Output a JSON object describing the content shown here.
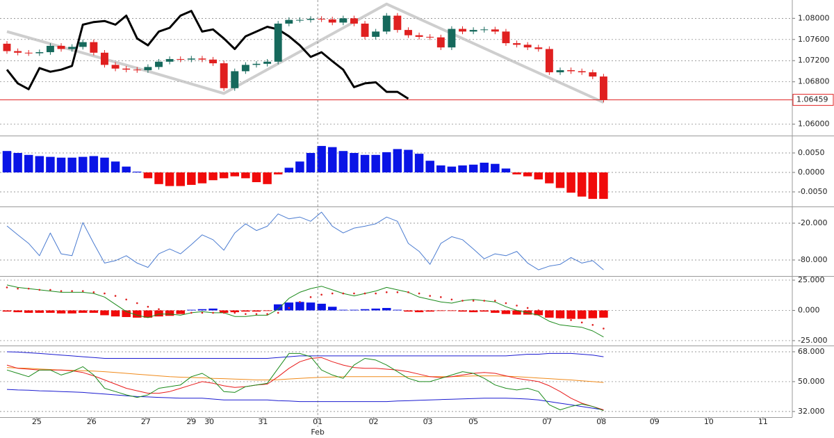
{
  "chart_data": [
    {
      "type": "candlestick",
      "xlim": [
        -0.64,
        72.4
      ],
      "ylim": [
        1.0581,
        1.0832
      ],
      "yticks": [
        {
          "value": 1.08,
          "label": "1.08000"
        },
        {
          "value": 1.076,
          "label": "1.07600"
        },
        {
          "value": 1.072,
          "label": "1.07200"
        },
        {
          "value": 1.068,
          "label": "1.06800"
        },
        {
          "value": 1.06,
          "label": "1.06000"
        }
      ],
      "grid": true,
      "up_color": "#16695c",
      "down_color": "#e02020",
      "open": [
        1.0752,
        1.0738,
        1.0735,
        1.0734,
        1.0736,
        1.0748,
        1.0742,
        1.0746,
        1.0755,
        1.0735,
        1.0712,
        1.0705,
        1.0703,
        1.0702,
        1.0708,
        1.0718,
        1.0723,
        1.0722,
        1.0724,
        1.0722,
        1.0715,
        1.0668,
        1.07,
        1.0712,
        1.0714,
        1.0718,
        1.079,
        1.0797,
        1.0797,
        1.0799,
        1.0798,
        1.0792,
        1.08,
        1.079,
        1.0765,
        1.0775,
        1.0805,
        1.0778,
        1.0768,
        1.0765,
        1.0764,
        1.0745,
        1.078,
        1.0775,
        1.0778,
        1.0779,
        1.0775,
        1.0753,
        1.075,
        1.0745,
        1.0742,
        1.0698,
        1.0702,
        1.07,
        1.0698,
        1.069
      ],
      "high": [
        1.0757,
        1.0743,
        1.074,
        1.0741,
        1.0753,
        1.0753,
        1.0751,
        1.076,
        1.076,
        1.074,
        1.0717,
        1.071,
        1.0708,
        1.0713,
        1.0723,
        1.0728,
        1.0728,
        1.0729,
        1.0729,
        1.0727,
        1.072,
        1.0705,
        1.0717,
        1.0719,
        1.0723,
        1.0795,
        1.0802,
        1.0802,
        1.0804,
        1.0804,
        1.0803,
        1.0805,
        1.0805,
        1.0795,
        1.078,
        1.081,
        1.081,
        1.0783,
        1.0773,
        1.077,
        1.0769,
        1.0785,
        1.0785,
        1.0783,
        1.0784,
        1.0784,
        1.078,
        1.0758,
        1.0755,
        1.075,
        1.0747,
        1.0707,
        1.0707,
        1.0705,
        1.0703,
        1.0695
      ],
      "low": [
        1.0733,
        1.073,
        1.0729,
        1.0729,
        1.0731,
        1.0737,
        1.0737,
        1.0741,
        1.073,
        1.0707,
        1.07,
        1.0698,
        1.0697,
        1.0697,
        1.0703,
        1.0713,
        1.0717,
        1.0717,
        1.0717,
        1.071,
        1.0663,
        1.0663,
        1.0695,
        1.0707,
        1.0709,
        1.0713,
        1.0785,
        1.0792,
        1.0792,
        1.0793,
        1.0787,
        1.0787,
        1.0785,
        1.076,
        1.076,
        1.077,
        1.0773,
        1.0763,
        1.076,
        1.0759,
        1.074,
        1.074,
        1.077,
        1.077,
        1.0773,
        1.077,
        1.0748,
        1.0745,
        1.074,
        1.0737,
        1.0693,
        1.0693,
        1.0695,
        1.0693,
        1.0685,
        1.0641
      ],
      "close": [
        1.0738,
        1.0735,
        1.0734,
        1.0736,
        1.0748,
        1.0742,
        1.0746,
        1.0755,
        1.0735,
        1.0712,
        1.0705,
        1.0703,
        1.0702,
        1.0708,
        1.0718,
        1.0723,
        1.0722,
        1.0724,
        1.0722,
        1.0715,
        1.0668,
        1.07,
        1.0712,
        1.0714,
        1.0718,
        1.079,
        1.0797,
        1.0797,
        1.0799,
        1.0798,
        1.0792,
        1.08,
        1.079,
        1.0765,
        1.0775,
        1.0805,
        1.0778,
        1.0768,
        1.0765,
        1.0764,
        1.0745,
        1.078,
        1.0775,
        1.0778,
        1.0779,
        1.0775,
        1.0753,
        1.075,
        1.0745,
        1.0742,
        1.0698,
        1.0702,
        1.07,
        1.0698,
        1.069,
        1.06459
      ],
      "last_price_color": "#e02020",
      "series": [
        {
          "color": "#bdbdbd",
          "line_width": 4,
          "x": [
            0,
            13,
            20,
            35,
            55
          ],
          "values": [
            1.0775,
            1.07,
            1.0658,
            1.0827,
            1.0641
          ]
        },
        {
          "color": "#000000",
          "line_width": 3,
          "values": [
            1.0703,
            1.0677,
            1.0666,
            1.0706,
            1.0699,
            1.0703,
            1.071,
            1.0788,
            1.0793,
            1.0795,
            1.0788,
            1.0805,
            1.0762,
            1.0749,
            1.0775,
            1.0782,
            1.0805,
            1.0814,
            1.0775,
            1.0779,
            1.0762,
            1.0742,
            1.0766,
            1.0775,
            1.0784,
            1.0779,
            1.0766,
            1.0749,
            1.0727,
            1.0736,
            1.0719,
            1.0703,
            1.067,
            1.0677,
            1.0679,
            1.0661,
            1.0661,
            1.0648,
            null,
            null,
            null,
            null,
            null,
            null,
            null,
            null,
            null,
            null,
            null,
            null,
            null,
            null,
            null,
            null,
            null,
            null
          ]
        }
      ]
    },
    {
      "type": "bar",
      "xlim": [
        -0.64,
        72.4
      ],
      "ylim": [
        -0.00839,
        0.00893
      ],
      "yticks": [
        {
          "value": 0.005,
          "label": "0.0050"
        },
        {
          "value": 0,
          "label": "0.0000"
        },
        {
          "value": -0.005,
          "label": "-0.0050"
        }
      ],
      "grid": true,
      "positive_color": "#0a14e6",
      "negative_color": "#f00a0a",
      "values": [
        0.0055,
        0.005,
        0.0045,
        0.0042,
        0.004,
        0.0038,
        0.0038,
        0.004,
        0.0042,
        0.0038,
        0.0028,
        0.0015,
        0.0002,
        -0.0015,
        -0.003,
        -0.0035,
        -0.0035,
        -0.0032,
        -0.0028,
        -0.002,
        -0.0015,
        -0.001,
        -0.0015,
        -0.0025,
        -0.003,
        -0.0005,
        0.0012,
        0.0028,
        0.005,
        0.0068,
        0.0065,
        0.0055,
        0.005,
        0.0045,
        0.0045,
        0.0052,
        0.006,
        0.0058,
        0.0048,
        0.003,
        0.0018,
        0.0015,
        0.0018,
        0.002,
        0.0025,
        0.0022,
        0.001,
        -0.0005,
        -0.001,
        -0.0018,
        -0.0028,
        -0.004,
        -0.0052,
        -0.0062,
        -0.0068,
        -0.0068
      ]
    },
    {
      "type": "line",
      "xlim": [
        -0.64,
        72.4
      ],
      "ylim": [
        -103.8,
        4.9
      ],
      "yticks": [
        {
          "value": -20,
          "label": "-20.000"
        },
        {
          "value": -80,
          "label": "-80.000"
        }
      ],
      "grid": true,
      "series": [
        {
          "color": "#4a7bd0",
          "line_width": 1,
          "values": [
            -24.5,
            -39,
            -53,
            -73,
            -36,
            -70,
            -73,
            -19,
            -53,
            -85,
            -81,
            -73,
            -85,
            -92,
            -70,
            -62,
            -70,
            -55,
            -39,
            -47,
            -64,
            -36,
            -21,
            -32,
            -25,
            -5,
            -13,
            -10,
            -17,
            -2,
            -25,
            -36,
            -28,
            -25,
            -21,
            -10,
            -17,
            -53,
            -66,
            -87,
            -53,
            -42,
            -47,
            -62,
            -78,
            -70,
            -73,
            -66,
            -85,
            -96,
            -90,
            -87,
            -76,
            -85,
            -81,
            -96
          ]
        }
      ]
    },
    {
      "type": "bar",
      "xlim": [
        -0.64,
        72.4
      ],
      "ylim": [
        -27.9,
        26.7
      ],
      "yticks": [
        {
          "value": 25,
          "label": "25.000"
        },
        {
          "value": 0,
          "label": "0.000"
        },
        {
          "value": -25,
          "label": "-25.000"
        }
      ],
      "grid": true,
      "positive_color": "#0a14e6",
      "negative_color": "#f00a0a",
      "values": [
        -1,
        -1.5,
        -2,
        -2,
        -2,
        -2.5,
        -2.5,
        -2,
        -2,
        -4,
        -5,
        -5.5,
        -6,
        -6,
        -5,
        -4.5,
        -3,
        0.5,
        1,
        1.5,
        -2,
        -1.5,
        -1,
        -1,
        -0.5,
        5,
        6.5,
        7,
        6.5,
        5.5,
        3,
        0.5,
        0.5,
        1,
        1.5,
        2,
        0.5,
        -1,
        -1.5,
        -1,
        -0.5,
        -0.5,
        -1,
        -1.5,
        -1,
        -2,
        -3,
        -3.5,
        -3.5,
        -4,
        -6,
        -6.5,
        -7,
        -7,
        -6.5,
        -6
      ],
      "series": [
        {
          "color": "#1a8a1a",
          "line_width": 1,
          "values": [
            21,
            19,
            18,
            17,
            16,
            15,
            15,
            15,
            14,
            11,
            5,
            -1,
            -4,
            -6,
            -3,
            -3,
            -4,
            -2,
            -1,
            -2,
            -2,
            -5,
            -5,
            -4,
            -4,
            1,
            10,
            15,
            18,
            20,
            17,
            14,
            12,
            14,
            16,
            19,
            17,
            15,
            11,
            9,
            7,
            6,
            8,
            9,
            8,
            7,
            3,
            0,
            -2,
            -4,
            -9,
            -12,
            -13,
            -14,
            -17,
            -22
          ]
        },
        {
          "color": "#e02020",
          "style": "dots",
          "values": [
            19,
            18,
            18,
            17,
            17,
            16,
            16,
            16,
            15,
            14,
            12,
            9,
            6,
            3,
            1,
            -1,
            -2,
            -2,
            -2,
            -2,
            -2,
            -2,
            -3,
            -3,
            -3,
            -2,
            2,
            7,
            11,
            13,
            14,
            14,
            14,
            14,
            14,
            15,
            15,
            15,
            14,
            12,
            11,
            9,
            8,
            8,
            8,
            8,
            6,
            4,
            2,
            0,
            -3,
            -6,
            -8,
            -10,
            -12,
            -15
          ]
        }
      ]
    },
    {
      "type": "line",
      "xlim": [
        -0.64,
        72.4
      ],
      "ylim": [
        28.6,
        70.5
      ],
      "yticks": [
        {
          "value": 68,
          "label": "68.000"
        },
        {
          "value": 50,
          "label": "50.000"
        },
        {
          "value": 32,
          "label": "32.000"
        }
      ],
      "grid": true,
      "xticks": [
        {
          "value": 2.75,
          "label": "25"
        },
        {
          "value": 7.8,
          "label": "26"
        },
        {
          "value": 12.8,
          "label": "27"
        },
        {
          "value": 17,
          "label": "29"
        },
        {
          "value": 18.65,
          "label": "30"
        },
        {
          "value": 23.6,
          "label": "31"
        },
        {
          "value": 28.65,
          "label": "01"
        },
        {
          "value": 33.8,
          "label": "02"
        },
        {
          "value": 38.8,
          "label": "03"
        },
        {
          "value": 43,
          "label": "05"
        },
        {
          "value": 49.8,
          "label": "07"
        },
        {
          "value": 54.8,
          "label": "08"
        },
        {
          "value": 59.7,
          "label": "09"
        },
        {
          "value": 64.7,
          "label": "10"
        },
        {
          "value": 69.7,
          "label": "11"
        }
      ],
      "month_labels": [
        {
          "value": 28.65,
          "label": "Feb"
        }
      ],
      "series": [
        {
          "color": "#1a1ad0",
          "line_width": 1,
          "values": [
            68,
            67.8,
            67.4,
            67,
            66.5,
            66,
            65.5,
            65,
            64.5,
            64,
            64,
            64,
            64,
            64,
            64,
            64,
            64,
            64,
            64,
            64,
            64,
            64,
            64,
            64,
            64,
            64.5,
            65,
            65.5,
            65.5,
            65.5,
            65.5,
            65.5,
            65.5,
            65.5,
            65.5,
            65.5,
            65.5,
            65.5,
            65.5,
            65.5,
            65.5,
            65.5,
            65.5,
            65.5,
            65.5,
            65.5,
            65.5,
            66,
            66.5,
            66.5,
            67,
            67,
            67,
            66.5,
            66,
            65
          ]
        },
        {
          "color": "#1a1ad0",
          "line_width": 1,
          "values": [
            45.3,
            45,
            44.8,
            44.5,
            44.3,
            44,
            43.8,
            43.5,
            43,
            42.5,
            42,
            41.5,
            41,
            40.8,
            40.5,
            40.3,
            40,
            40,
            40,
            39.5,
            39,
            39,
            39,
            39,
            39,
            38.5,
            38.3,
            38,
            38,
            38,
            38,
            38,
            38,
            38,
            38,
            38,
            38.3,
            38.5,
            38.8,
            39,
            39.2,
            39.4,
            39.6,
            39.8,
            40,
            40,
            40,
            39.8,
            39.5,
            39,
            38,
            37,
            36,
            35,
            34,
            33
          ]
        },
        {
          "color": "#f08a1a",
          "line_width": 1,
          "values": [
            58.5,
            58.2,
            58,
            57.6,
            57.3,
            57,
            56.8,
            56.6,
            56.4,
            56,
            55.5,
            55,
            54.5,
            54,
            53.5,
            53,
            52.7,
            52.5,
            52.3,
            52,
            51.8,
            51.5,
            51.3,
            51,
            51,
            51.2,
            51.6,
            52,
            52.3,
            52.6,
            52.8,
            53,
            53,
            53,
            53,
            53,
            53,
            53,
            53,
            53,
            53,
            53,
            53.2,
            53.4,
            53.5,
            53.5,
            53.3,
            53,
            52.6,
            52.2,
            51.8,
            51.4,
            51,
            50.5,
            50,
            49.5
          ]
        },
        {
          "color": "#e81a1a",
          "line_width": 1,
          "values": [
            60,
            58,
            57.5,
            57,
            57,
            57,
            56.5,
            55.5,
            53.5,
            51,
            48.5,
            46,
            44.5,
            43,
            43,
            44,
            46,
            48,
            50,
            49,
            47.5,
            46.5,
            47,
            48,
            48.5,
            53,
            58,
            62,
            64,
            64.5,
            62,
            60,
            58.5,
            58,
            58,
            57.5,
            57,
            56,
            54.5,
            53,
            52.5,
            53,
            54,
            55,
            55.5,
            55,
            53.5,
            52,
            51,
            50,
            47.5,
            44,
            40,
            37,
            35,
            33
          ]
        },
        {
          "color": "#1a8a1a",
          "line_width": 1,
          "values": [
            57,
            55,
            53,
            57,
            57,
            54,
            56,
            59,
            54,
            46,
            44,
            42,
            40.5,
            42,
            46,
            47,
            48,
            53,
            55,
            51,
            44,
            43.5,
            47,
            48,
            49,
            58,
            67,
            67,
            65,
            57,
            54,
            52,
            60,
            64,
            63,
            60,
            56,
            52,
            50,
            50,
            52,
            54,
            56,
            55,
            52,
            48,
            46,
            45,
            46,
            44,
            36,
            33,
            35,
            36.5,
            35,
            32.5
          ]
        }
      ]
    }
  ]
}
